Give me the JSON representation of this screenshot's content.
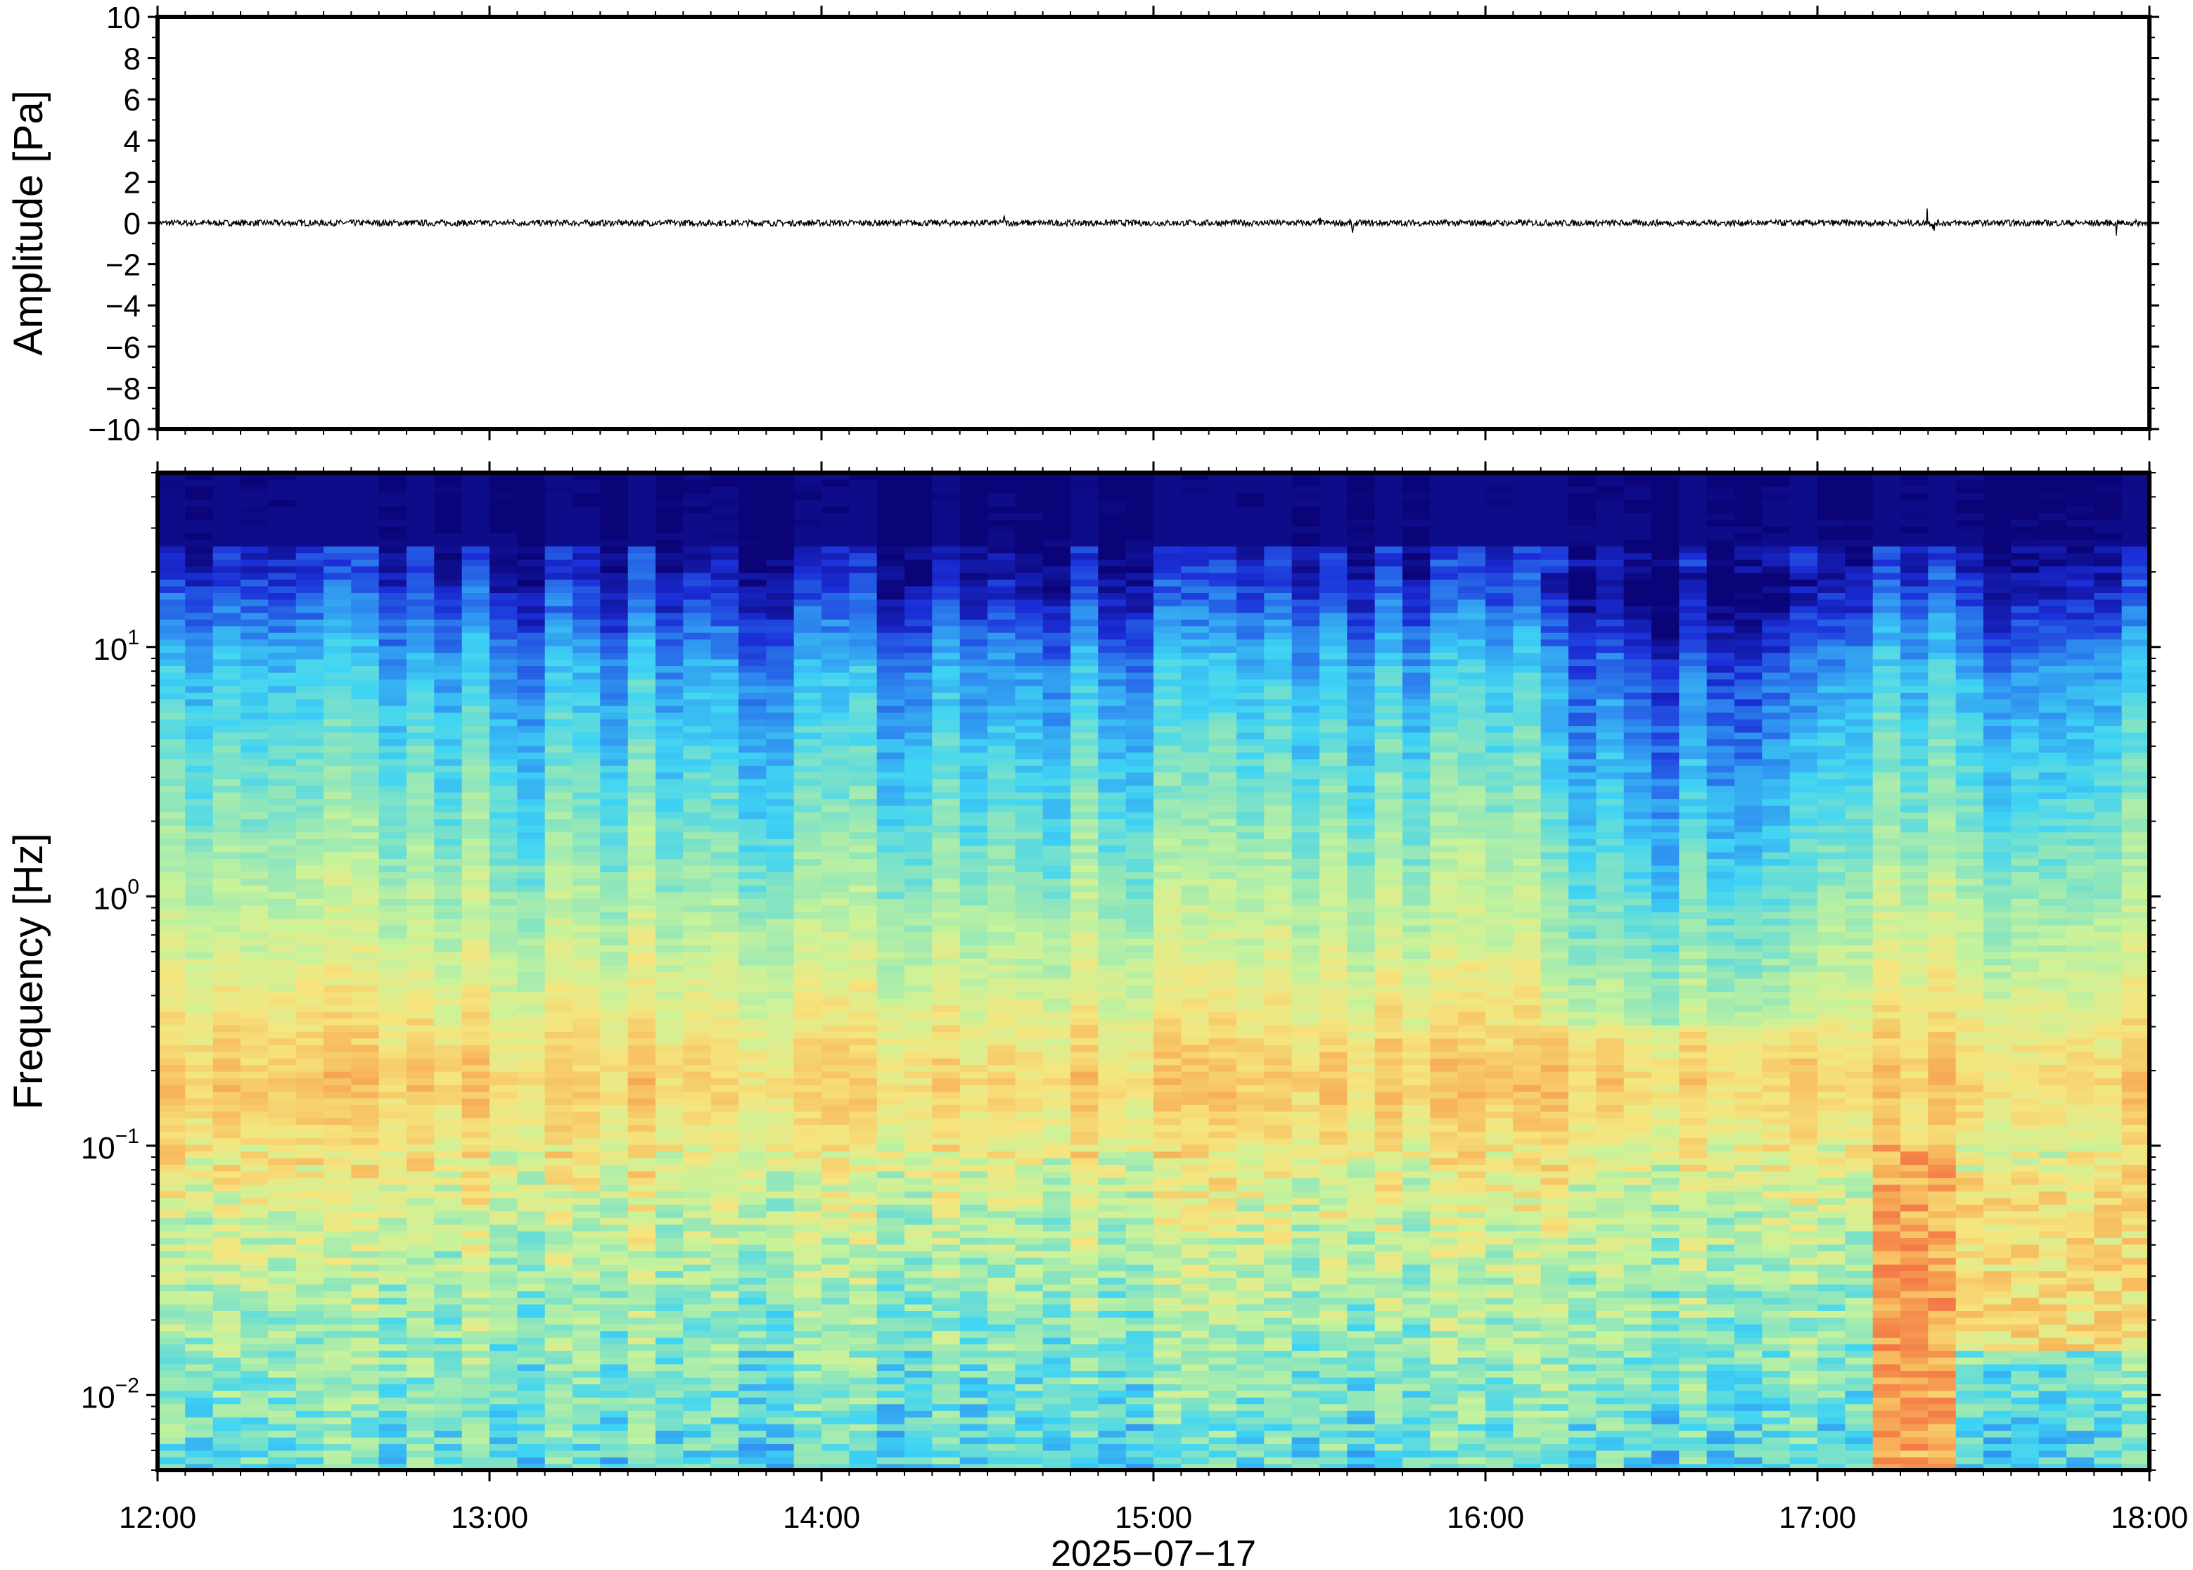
{
  "chart_data": [
    {
      "type": "line",
      "ylabel": "Amplitude [Pa]",
      "ylim": [
        -10,
        10
      ],
      "yticks": [
        10,
        8,
        6,
        4,
        2,
        0,
        -2,
        -4,
        -6,
        -8,
        -10
      ],
      "ytick_labels": [
        "10",
        "8",
        "6",
        "4",
        "2",
        "0",
        "−2",
        "−4",
        "−6",
        "−8",
        "−10"
      ],
      "xlim": [
        "12:00",
        "18:00"
      ],
      "x_unit": "hours",
      "noise_amplitude_pa": 0.15,
      "peaks": [
        {
          "time_hours": 13.07,
          "amplitude_pa": 0.35
        },
        {
          "time_hours": 14.55,
          "amplitude_pa": 0.4
        },
        {
          "time_hours": 15.5,
          "amplitude_pa": 0.45
        },
        {
          "time_hours": 15.6,
          "amplitude_pa": -0.55
        },
        {
          "time_hours": 17.33,
          "amplitude_pa": 0.85
        },
        {
          "time_hours": 17.35,
          "amplitude_pa": -0.7
        },
        {
          "time_hours": 17.9,
          "amplitude_pa": -0.65
        }
      ],
      "grid": false,
      "line_color": "#000000"
    },
    {
      "type": "heatmap",
      "ylabel": "Frequency [Hz]",
      "yscale": "log",
      "ylim": [
        0.005,
        50
      ],
      "yticks": [
        0.01,
        0.1,
        1,
        10
      ],
      "ytick_labels": [
        {
          "base": "10",
          "exp": "−2"
        },
        {
          "base": "10",
          "exp": "−1"
        },
        {
          "base": "10",
          "exp": "0"
        },
        {
          "base": "10",
          "exp": "1"
        }
      ],
      "xlabel": "2025−07−17",
      "xlim": [
        "12:00",
        "18:00"
      ],
      "x_hours": [
        12,
        13,
        14,
        15,
        16,
        17,
        18
      ],
      "xtick_labels": [
        "12:00",
        "13:00",
        "14:00",
        "15:00",
        "16:00",
        "17:00",
        "18:00"
      ],
      "colormap": "jet-like",
      "colormap_stops": [
        "#0b0478",
        "#1b2ed8",
        "#2f8ff0",
        "#3fd4f4",
        "#8ee6bc",
        "#c9f39a",
        "#f6e57e",
        "#f7b85c",
        "#f47d47",
        "#e8403a"
      ],
      "power_profile": [
        {
          "freq_hz": 0.006,
          "level": 0.38
        },
        {
          "freq_hz": 0.015,
          "level": 0.45
        },
        {
          "freq_hz": 0.05,
          "level": 0.55
        },
        {
          "freq_hz": 0.18,
          "level": 0.72
        },
        {
          "freq_hz": 0.6,
          "level": 0.56
        },
        {
          "freq_hz": 2.0,
          "level": 0.42
        },
        {
          "freq_hz": 8.0,
          "level": 0.28
        },
        {
          "freq_hz": 20.0,
          "level": 0.08
        },
        {
          "freq_hz": 45.0,
          "level": 0.0
        }
      ],
      "events": [
        {
          "start_hours": 17.2,
          "end_hours": 17.45,
          "freq_low_hz": 0.005,
          "freq_high_hz": 0.1,
          "peak_level": 0.9
        },
        {
          "start_hours": 17.45,
          "end_hours": 18.0,
          "freq_low_hz": 0.015,
          "freq_high_hz": 0.08,
          "peak_level": 0.78
        },
        {
          "start_hours": 16.2,
          "end_hours": 17.0,
          "freq_low_hz": 0.3,
          "freq_high_hz": 20,
          "peak_level": 0.3
        }
      ],
      "grid": false
    }
  ]
}
